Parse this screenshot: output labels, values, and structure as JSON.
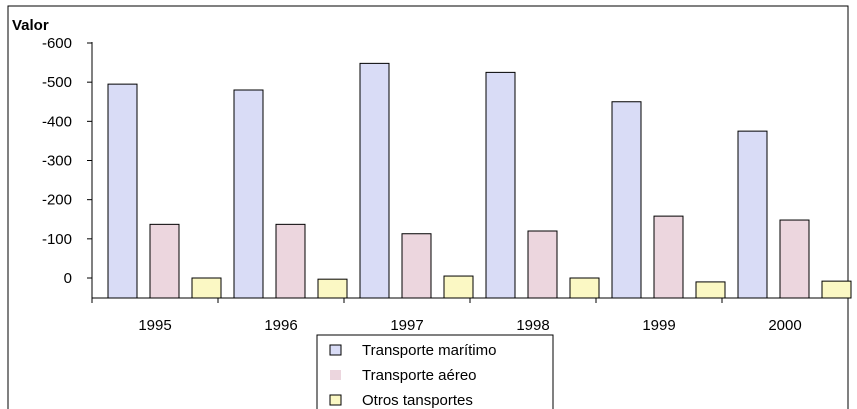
{
  "chart_data": {
    "type": "bar",
    "title": "",
    "ylabel": "Valor",
    "xlabel": "",
    "categories": [
      "1995",
      "1996",
      "1997",
      "1998",
      "1999",
      "2000"
    ],
    "ylim": [
      0,
      -600
    ],
    "y_ticks": [
      {
        "value": -600,
        "label": "-600"
      },
      {
        "value": -500,
        "label": "-500"
      },
      {
        "value": -400,
        "label": "-400"
      },
      {
        "value": -300,
        "label": "-300"
      },
      {
        "value": -200,
        "label": "-200"
      },
      {
        "value": -100,
        "label": "-100"
      },
      {
        "value": 0,
        "label": "0"
      }
    ],
    "grid": false,
    "legend_position": "bottom-center",
    "series": [
      {
        "name": "Transporte marítimo",
        "color": "#d9dcf6",
        "values": [
          -495,
          -480,
          -548,
          -525,
          -450,
          -375
        ]
      },
      {
        "name": "Transporte aéreo",
        "color": "#ecd6de",
        "values": [
          -137,
          -137,
          -113,
          -120,
          -158,
          -148
        ]
      },
      {
        "name": "Otros tansportes",
        "color": "#fbf8c4",
        "values": [
          0,
          3,
          -5,
          0,
          10,
          8
        ]
      }
    ]
  }
}
